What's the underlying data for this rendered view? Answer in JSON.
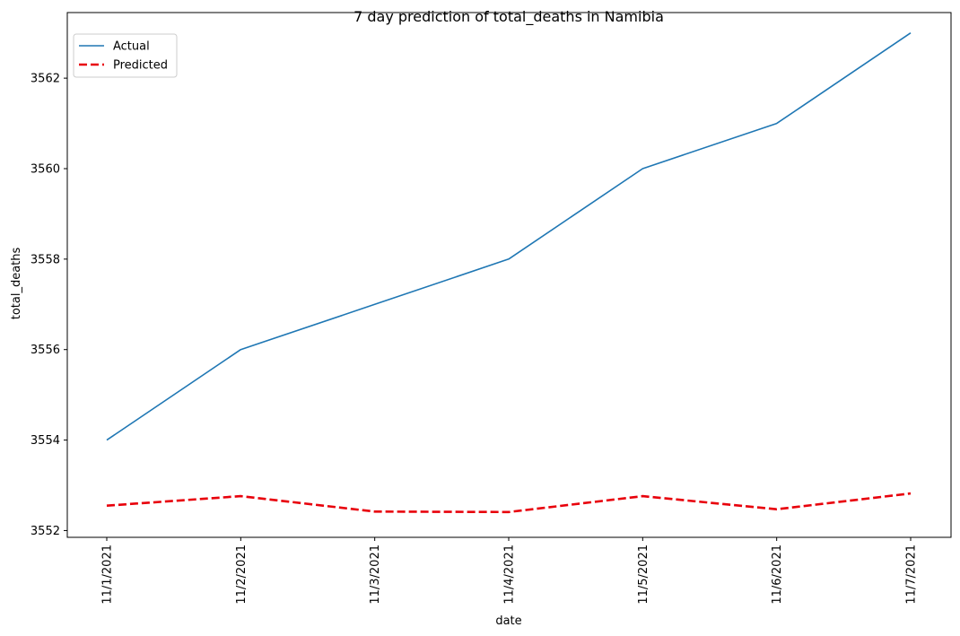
{
  "chart_data": {
    "type": "line",
    "title": "7 day prediction of total_deaths in Namibia",
    "xlabel": "date",
    "ylabel": "total_deaths",
    "x": [
      "11/1/2021",
      "11/2/2021",
      "11/3/2021",
      "11/4/2021",
      "11/5/2021",
      "11/6/2021",
      "11/7/2021"
    ],
    "yticks": [
      3552,
      3554,
      3556,
      3558,
      3560,
      3562
    ],
    "ylim": [
      3551.85,
      3563.45
    ],
    "grid": false,
    "legend": "top-left",
    "series": [
      {
        "name": "Actual",
        "color": "#1f77b4",
        "style": "solid",
        "values": [
          3554,
          3556,
          3557,
          3558,
          3560,
          3561,
          3563
        ]
      },
      {
        "name": "Predicted",
        "color": "#e8000b",
        "style": "dashed",
        "values": [
          3552.55,
          3552.76,
          3552.42,
          3552.41,
          3552.76,
          3552.47,
          3552.82
        ]
      }
    ]
  }
}
